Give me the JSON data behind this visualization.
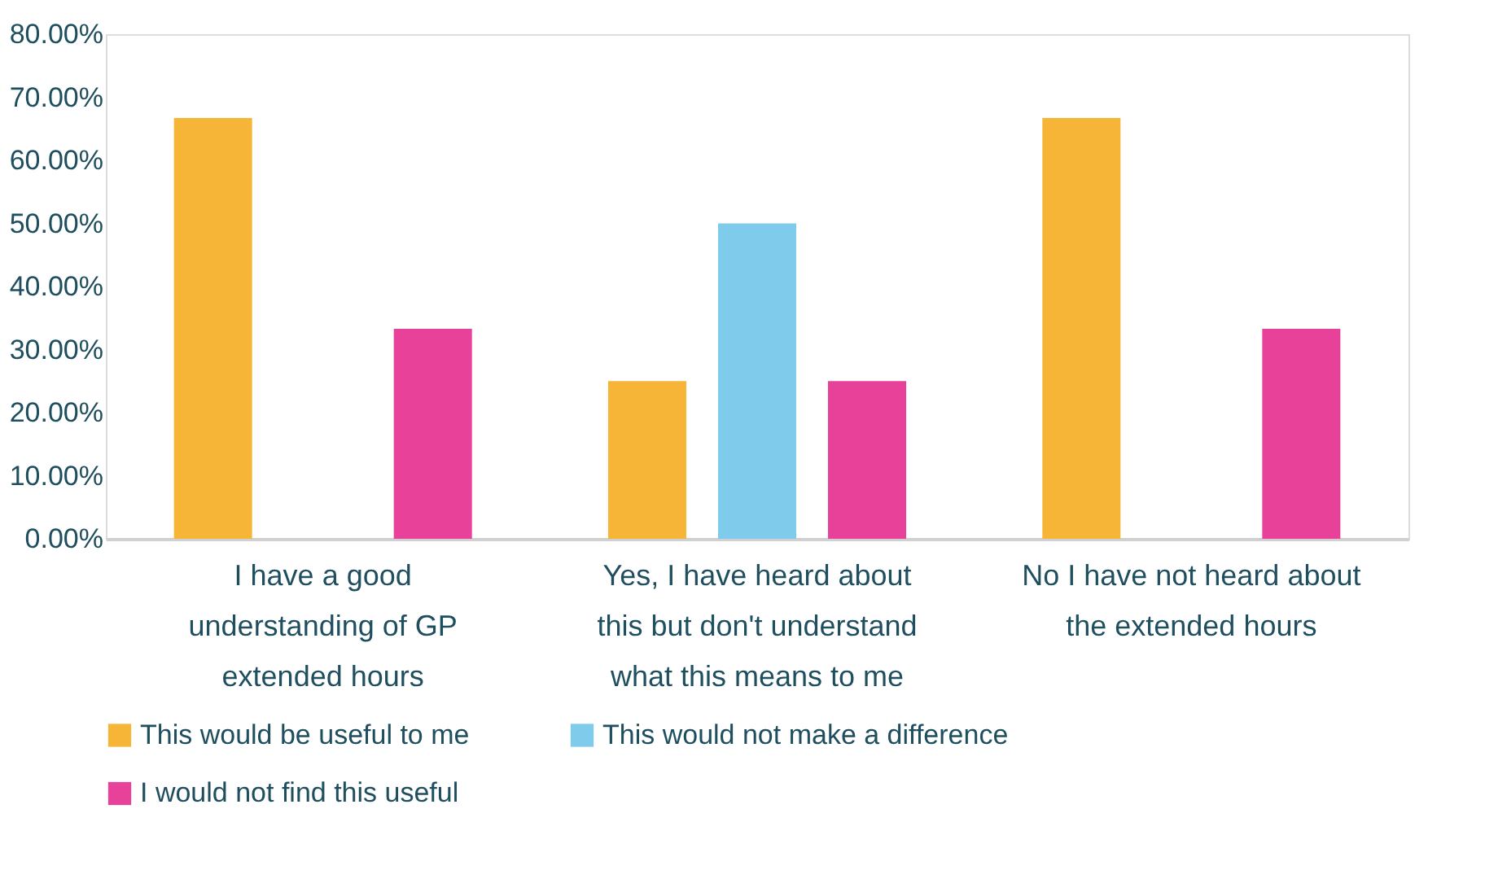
{
  "chart_data": {
    "type": "bar",
    "categories": [
      "I have a good understanding of GP extended hours",
      "Yes, I have heard about this but don't understand what this means to me",
      "No I have not heard about the extended hours"
    ],
    "series": [
      {
        "name": "This would be useful to me",
        "color": "#f7b538",
        "values": [
          66.7,
          25,
          66.7
        ]
      },
      {
        "name": "This would not make a difference",
        "color": "#7ecbec",
        "values": [
          0,
          50,
          0
        ]
      },
      {
        "name": "I would not find this useful",
        "color": "#e8419a",
        "values": [
          33.3,
          25,
          33.3
        ]
      }
    ],
    "ylim": [
      0,
      80
    ],
    "yticks": [
      {
        "value": 0,
        "label": "0.00%"
      },
      {
        "value": 10,
        "label": "10.00%"
      },
      {
        "value": 20,
        "label": "20.00%"
      },
      {
        "value": 30,
        "label": "30.00%"
      },
      {
        "value": 40,
        "label": "40.00%"
      },
      {
        "value": 50,
        "label": "50.00%"
      },
      {
        "value": 60,
        "label": "60.00%"
      },
      {
        "value": 70,
        "label": "70.00%"
      },
      {
        "value": 80,
        "label": "80.00%"
      }
    ],
    "grid": false,
    "legend": "bottom"
  }
}
